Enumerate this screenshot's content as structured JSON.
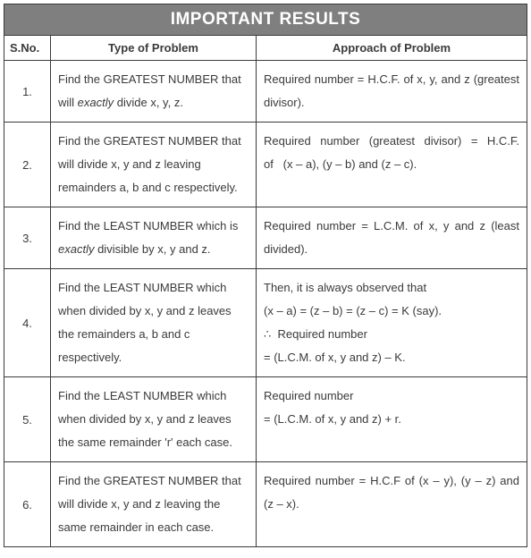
{
  "title": "IMPORTANT RESULTS",
  "headers": {
    "sno": "S.No.",
    "type": "Type of Problem",
    "approach": "Approach of Problem"
  },
  "rows": [
    {
      "sno": "1.",
      "problem_html": "Find the GREATEST NUMBER that will <em>exactly</em> divide x, y, z.",
      "approach_html": "Required number = H.C.F. of x, y, and z (greatest divisor)."
    },
    {
      "sno": "2.",
      "problem_html": "Find the GREATEST NUMBER that will divide x, y and z leaving remainders a, b and c respectively.",
      "approach_html": "Required number (greatest divisor) = H.C.F. of&nbsp;&nbsp;&nbsp;(x – a), (y – b) and (z – c)."
    },
    {
      "sno": "3.",
      "problem_html": "Find the LEAST NUMBER which is <em>exactly</em> divisible by x, y and z.",
      "approach_html": "Required number = L.C.M. of x, y and z (least divided)."
    },
    {
      "sno": "4.",
      "problem_html": "Find the LEAST NUMBER which when divided by x, y and z leaves the remainders a, b and c respectively.",
      "approach_html": "Then, it is always observed that<br>(x – a) = (z – b) = (z – c) = K (say).<br>∴&nbsp;&nbsp;Required number<br>= (L.C.M. of x, y and z) – K."
    },
    {
      "sno": "5.",
      "problem_html": "Find the LEAST NUMBER which when divided by x, y and z leaves the same remainder 'r' each case.",
      "approach_html": "Required number<br>= (L.C.M. of x, y and z) + r."
    },
    {
      "sno": "6.",
      "problem_html": "Find the GREATEST NUMBER that will divide x, y and z leaving the same remainder in each case.",
      "approach_html": "Required number = H.C.F of (x – y), (y – z) and (z – x)."
    }
  ],
  "colors": {
    "header_bg": "#7f7f7f",
    "header_text": "#ffffff",
    "border": "#3a3a3a",
    "text": "#3a3a3a"
  }
}
